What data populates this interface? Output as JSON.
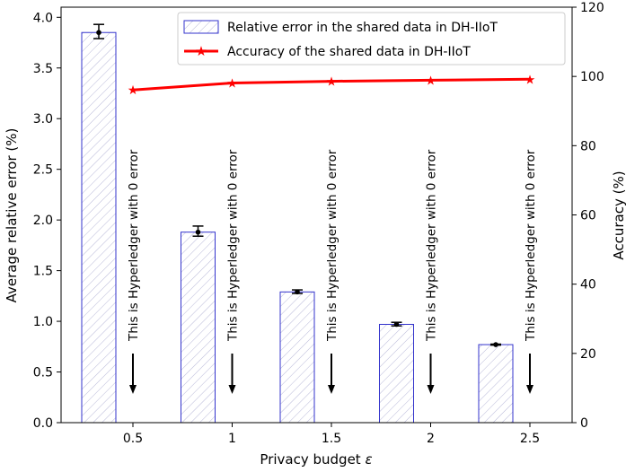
{
  "chart_data": {
    "type": "bar",
    "xlabel": "Privacy budget ",
    "xlabel_symbol": "ε",
    "ylabel_left": "Average relative error (%)",
    "ylabel_right": "Accuracy (%)",
    "categories": [
      "0.5",
      "1",
      "1.5",
      "2",
      "2.5"
    ],
    "ylim_left": [
      0,
      4.1
    ],
    "ylim_right": [
      0,
      120
    ],
    "yticks_left": [
      "0.0",
      "0.5",
      "1.0",
      "1.5",
      "2.0",
      "2.5",
      "3.0",
      "3.5",
      "4.0"
    ],
    "yticks_right": [
      "0",
      "20",
      "40",
      "60",
      "80",
      "100",
      "120"
    ],
    "series": [
      {
        "name": "Relative error in the shared data in DH-IIoT",
        "kind": "bar",
        "axis": "left",
        "values": [
          3.85,
          1.88,
          1.29,
          0.97,
          0.77
        ],
        "error_low": [
          3.79,
          1.84,
          1.275,
          0.955,
          0.765
        ],
        "error_high": [
          3.93,
          1.94,
          1.31,
          0.99,
          0.775
        ],
        "markers": [
          3.85,
          1.88,
          1.29,
          0.97,
          0.77
        ]
      },
      {
        "name": "Accuracy of the shared data in DH-IIoT",
        "kind": "line",
        "axis": "right",
        "values": [
          96.1,
          98.1,
          98.6,
          98.9,
          99.2
        ]
      }
    ],
    "annotations": [
      "This is Hyperledger with 0 error",
      "This is Hyperledger with 0 error",
      "This is Hyperledger with 0 error",
      "This is Hyperledger with 0 error",
      "This is Hyperledger with 0 error"
    ],
    "legend_position": "top-right",
    "grid": false,
    "colors": {
      "bar_edge": "#3333cc",
      "bar_hatch": "#b8b8d8",
      "line": "#ff0000",
      "marker_dot": "#000000"
    }
  }
}
